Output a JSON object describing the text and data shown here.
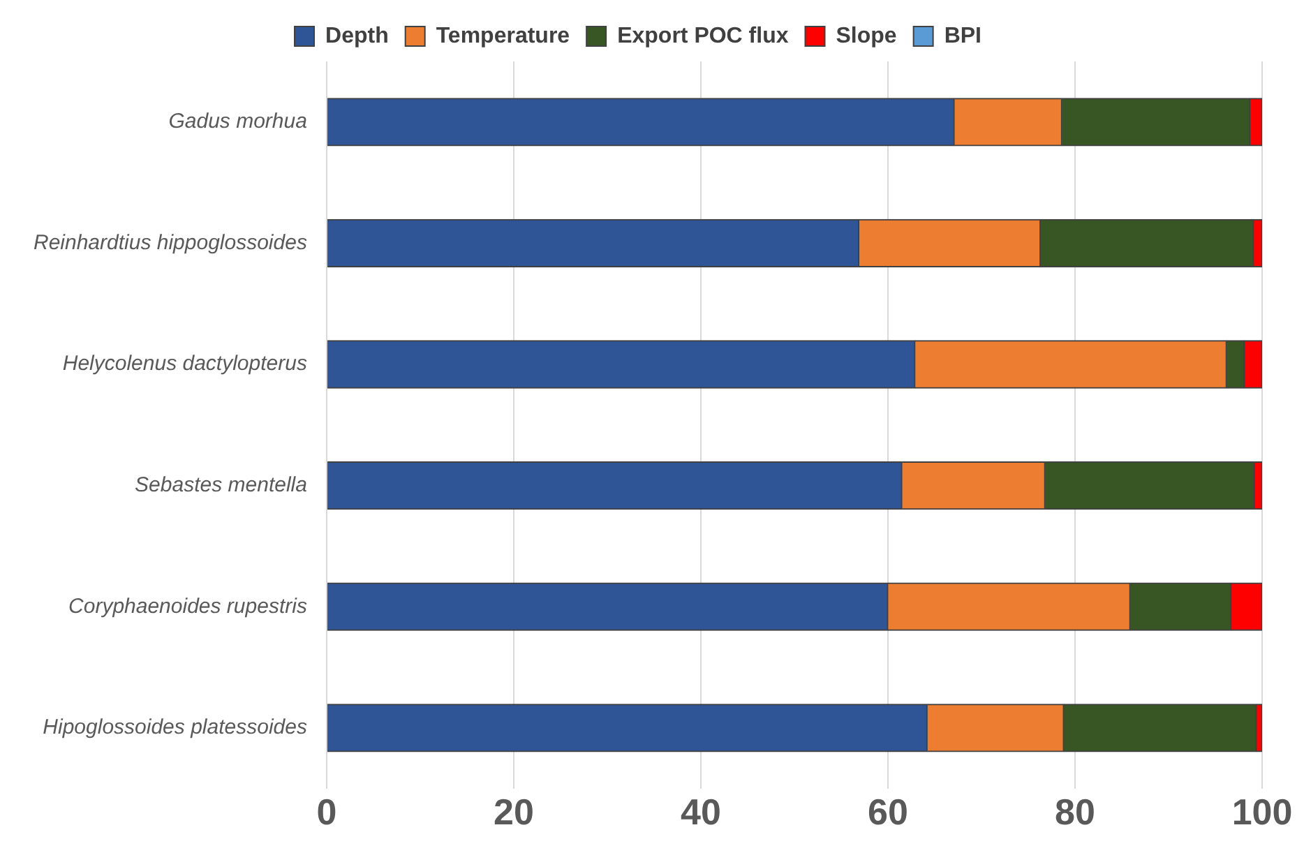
{
  "chart_data": {
    "type": "bar",
    "orientation": "horizontal",
    "stacked": true,
    "categories": [
      "Gadus morhua",
      "Reinhardtius hippoglossoides",
      "Helycolenus dactylopterus",
      "Sebastes mentella",
      "Coryphaenoides rupestris",
      "Hipoglossoides platessoides"
    ],
    "series": [
      {
        "name": "Depth",
        "color": "#2f5597",
        "values": [
          67.1,
          56.9,
          62.9,
          61.5,
          60.0,
          64.2
        ]
      },
      {
        "name": "Temperature",
        "color": "#ed7d31",
        "values": [
          11.5,
          19.4,
          33.3,
          15.3,
          25.9,
          14.6
        ]
      },
      {
        "name": "Export POC flux",
        "color": "#375623",
        "values": [
          20.1,
          22.8,
          1.9,
          22.4,
          10.8,
          20.6
        ]
      },
      {
        "name": "Slope",
        "color": "#ff0000",
        "values": [
          1.3,
          0.9,
          1.9,
          0.8,
          3.3,
          0.6
        ]
      },
      {
        "name": "BPI",
        "color": "#5b9bd5",
        "values": [
          0,
          0,
          0,
          0,
          0,
          0
        ]
      }
    ],
    "xlim": [
      0,
      100
    ],
    "xticks": [
      0,
      20,
      40,
      60,
      80,
      100
    ],
    "grid": "x",
    "legend": "top"
  }
}
